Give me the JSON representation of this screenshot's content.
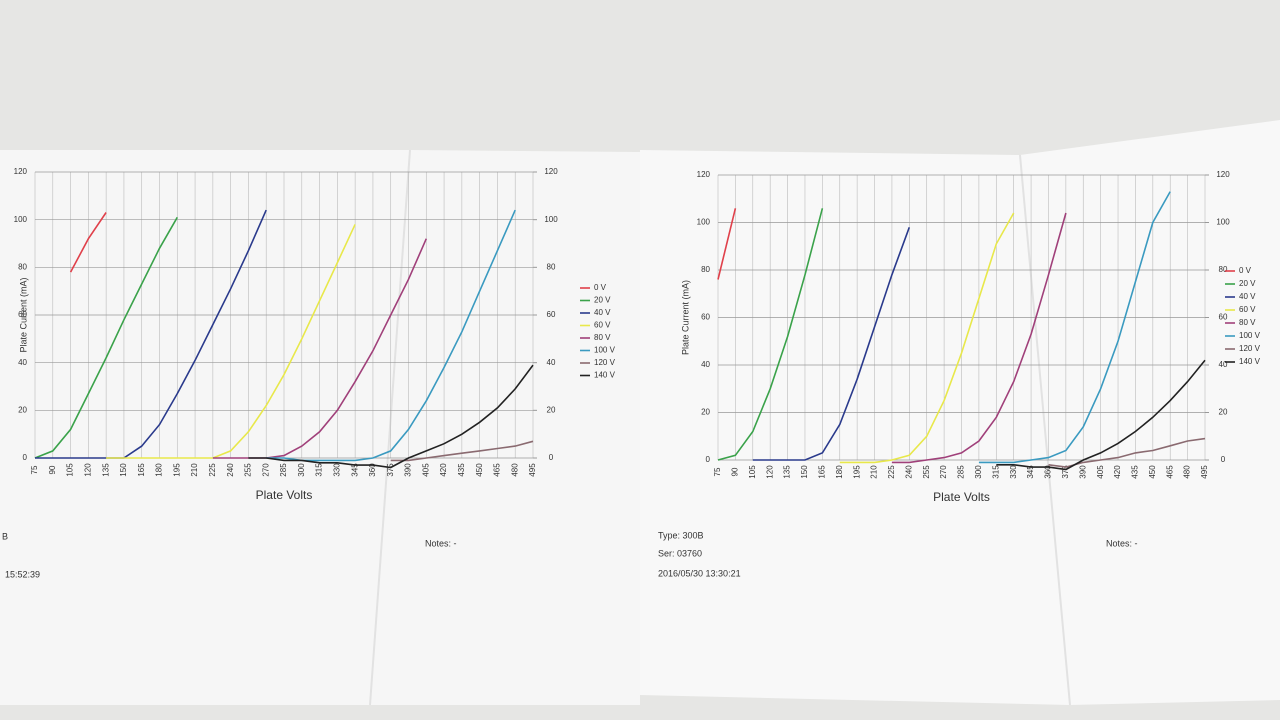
{
  "chart_data": [
    {
      "type": "line",
      "y_label": "Plate Current (mA)",
      "x_label": "Plate Volts",
      "x": [
        75,
        90,
        105,
        120,
        135,
        150,
        165,
        180,
        195,
        210,
        225,
        240,
        255,
        270,
        285,
        300,
        315,
        330,
        345,
        360,
        375,
        390,
        405,
        420,
        435,
        450,
        465,
        480,
        495
      ],
      "xlim": [
        75,
        495
      ],
      "xticks": [
        75,
        90,
        105,
        120,
        135,
        150,
        165,
        180,
        195,
        210,
        225,
        240,
        255,
        270,
        285,
        300,
        315,
        330,
        345,
        360,
        375,
        390,
        405,
        420,
        435,
        450,
        465,
        480,
        495
      ],
      "ylim": [
        0,
        120
      ],
      "yticks": [
        0,
        20,
        40,
        60,
        80,
        100,
        120
      ],
      "y2lim": [
        0,
        120
      ],
      "y2ticks": [
        0,
        20,
        40,
        60,
        80,
        100,
        120
      ],
      "grid": true,
      "series": [
        {
          "name": "0 V",
          "color": "#e0404a",
          "values": [
            null,
            null,
            78,
            92,
            103,
            null,
            null,
            null,
            null,
            null,
            null,
            null,
            null,
            null,
            null,
            null,
            null,
            null,
            null,
            null,
            null,
            null,
            null,
            null,
            null,
            null,
            null,
            null,
            null
          ]
        },
        {
          "name": "20 V",
          "color": "#3aa24a",
          "values": [
            0,
            3,
            12,
            27,
            42,
            58,
            73,
            88,
            101,
            null,
            null,
            null,
            null,
            null,
            null,
            null,
            null,
            null,
            null,
            null,
            null,
            null,
            null,
            null,
            null,
            null,
            null,
            null,
            null
          ]
        },
        {
          "name": "40 V",
          "color": "#2a3a8c",
          "values": [
            0,
            0,
            0,
            0,
            0,
            0,
            5,
            14,
            27,
            41,
            56,
            71,
            87,
            104,
            null,
            null,
            null,
            null,
            null,
            null,
            null,
            null,
            null,
            null,
            null,
            null,
            null,
            null,
            null
          ]
        },
        {
          "name": "60 V",
          "color": "#e8e84a",
          "values": [
            null,
            null,
            null,
            null,
            0,
            0,
            0,
            0,
            0,
            0,
            0,
            3,
            11,
            22,
            35,
            50,
            66,
            82,
            98,
            null,
            null,
            null,
            null,
            null,
            null,
            null,
            null,
            null,
            null
          ]
        },
        {
          "name": "80 V",
          "color": "#a0407a",
          "values": [
            null,
            null,
            null,
            null,
            null,
            null,
            null,
            null,
            null,
            null,
            0,
            0,
            0,
            0,
            1,
            5,
            11,
            20,
            32,
            45,
            60,
            75,
            92,
            null,
            null,
            null,
            null,
            null,
            null
          ]
        },
        {
          "name": "100 V",
          "color": "#3a9ac0",
          "values": [
            null,
            null,
            null,
            null,
            null,
            null,
            null,
            null,
            null,
            null,
            null,
            null,
            null,
            0,
            0,
            -1,
            -1,
            -1,
            -1,
            0,
            3,
            12,
            24,
            38,
            53,
            70,
            87,
            104,
            null
          ]
        },
        {
          "name": "120 V",
          "color": "#8a6a70",
          "values": [
            null,
            null,
            null,
            null,
            null,
            null,
            null,
            null,
            null,
            null,
            null,
            null,
            null,
            null,
            null,
            null,
            null,
            null,
            null,
            null,
            -1,
            -1,
            0,
            1,
            2,
            3,
            4,
            5,
            7
          ]
        },
        {
          "name": "140 V",
          "color": "#222222",
          "values": [
            null,
            null,
            null,
            null,
            null,
            null,
            null,
            null,
            null,
            null,
            null,
            null,
            0,
            0,
            -1,
            -1,
            -2,
            -2,
            -3,
            -3,
            -4,
            0,
            3,
            6,
            10,
            15,
            21,
            29,
            39
          ]
        }
      ],
      "annotations": [
        "B",
        "15:52:39",
        "Notes: -"
      ]
    },
    {
      "type": "line",
      "y_label": "Plate Current (mA)",
      "x_label": "Plate Volts",
      "x": [
        75,
        90,
        105,
        120,
        135,
        150,
        165,
        180,
        195,
        210,
        225,
        240,
        255,
        270,
        285,
        300,
        315,
        330,
        345,
        360,
        375,
        390,
        405,
        420,
        435,
        450,
        465,
        480,
        495
      ],
      "xlim": [
        75,
        495
      ],
      "xticks": [
        75,
        90,
        105,
        120,
        135,
        150,
        165,
        180,
        195,
        210,
        225,
        240,
        255,
        270,
        285,
        300,
        315,
        330,
        345,
        360,
        375,
        390,
        405,
        420,
        435,
        450,
        465,
        480,
        495
      ],
      "ylim": [
        0,
        120
      ],
      "yticks": [
        0,
        20,
        40,
        60,
        80,
        100,
        120
      ],
      "y2lim": [
        0,
        120
      ],
      "y2ticks": [
        0,
        20,
        40,
        60,
        80,
        100,
        120
      ],
      "grid": true,
      "series": [
        {
          "name": "0 V",
          "color": "#e0404a",
          "values": [
            76,
            106,
            null,
            null,
            null,
            null,
            null,
            null,
            null,
            null,
            null,
            null,
            null,
            null,
            null,
            null,
            null,
            null,
            null,
            null,
            null,
            null,
            null,
            null,
            null,
            null,
            null,
            null,
            null
          ]
        },
        {
          "name": "20 V",
          "color": "#3aa24a",
          "values": [
            0,
            2,
            12,
            30,
            52,
            78,
            106,
            null,
            null,
            null,
            null,
            null,
            null,
            null,
            null,
            null,
            null,
            null,
            null,
            null,
            null,
            null,
            null,
            null,
            null,
            null,
            null,
            null,
            null
          ]
        },
        {
          "name": "40 V",
          "color": "#2a3a8c",
          "values": [
            null,
            null,
            0,
            0,
            0,
            0,
            3,
            15,
            34,
            56,
            78,
            98,
            null,
            null,
            null,
            null,
            null,
            null,
            null,
            null,
            null,
            null,
            null,
            null,
            null,
            null,
            null,
            null,
            null
          ]
        },
        {
          "name": "60 V",
          "color": "#e8e84a",
          "values": [
            null,
            null,
            null,
            null,
            null,
            null,
            null,
            -1,
            -1,
            -1,
            0,
            2,
            10,
            25,
            45,
            68,
            91,
            104,
            null,
            null,
            null,
            null,
            null,
            null,
            null,
            null,
            null,
            null,
            null
          ]
        },
        {
          "name": "80 V",
          "color": "#a0407a",
          "values": [
            null,
            null,
            null,
            null,
            null,
            null,
            null,
            null,
            null,
            null,
            -1,
            -1,
            0,
            1,
            3,
            8,
            18,
            33,
            53,
            78,
            104,
            null,
            null,
            null,
            null,
            null,
            null,
            null,
            null
          ]
        },
        {
          "name": "100 V",
          "color": "#3a9ac0",
          "values": [
            null,
            null,
            null,
            null,
            null,
            null,
            null,
            null,
            null,
            null,
            null,
            null,
            null,
            null,
            null,
            -1,
            -1,
            -1,
            0,
            1,
            4,
            14,
            30,
            50,
            75,
            100,
            113,
            null,
            null
          ]
        },
        {
          "name": "120 V",
          "color": "#8a6a70",
          "values": [
            null,
            null,
            null,
            null,
            null,
            null,
            null,
            null,
            null,
            null,
            null,
            null,
            null,
            null,
            null,
            null,
            null,
            null,
            null,
            -2,
            -3,
            -1,
            0,
            1,
            3,
            4,
            6,
            8,
            9
          ]
        },
        {
          "name": "140 V",
          "color": "#222222",
          "values": [
            null,
            null,
            null,
            null,
            null,
            null,
            null,
            null,
            null,
            null,
            null,
            null,
            null,
            null,
            null,
            null,
            -2,
            -2,
            -3,
            -3,
            -4,
            0,
            3,
            7,
            12,
            18,
            25,
            33,
            42
          ]
        }
      ],
      "annotations": [
        "Type: 300B",
        "Ser: 03760",
        "2016/05/30  13:30:21",
        "Notes: -"
      ]
    }
  ]
}
